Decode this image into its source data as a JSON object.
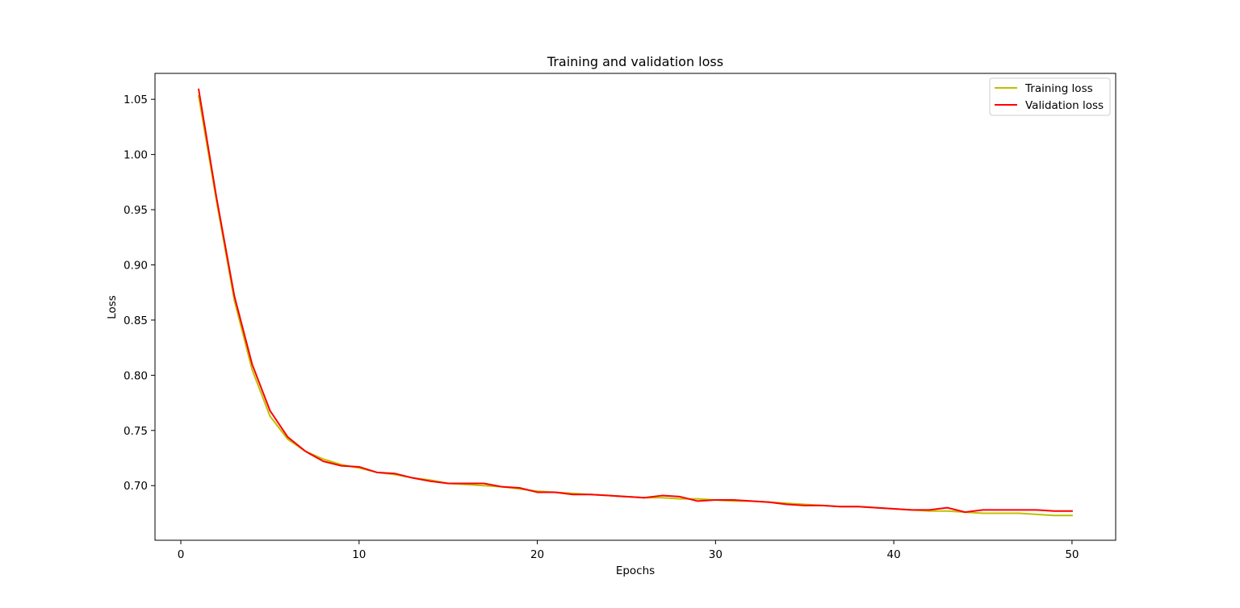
{
  "chart_data": {
    "type": "line",
    "title": "Training and validation loss",
    "xlabel": "Epochs",
    "ylabel": "Loss",
    "xlim": [
      -1.45,
      52.45
    ],
    "ylim": [
      0.6505,
      1.0735
    ],
    "xticks": [
      0,
      10,
      20,
      30,
      40,
      50
    ],
    "xtick_labels": [
      "0",
      "10",
      "20",
      "30",
      "40",
      "50"
    ],
    "yticks": [
      0.7,
      0.75,
      0.8,
      0.85,
      0.9,
      0.95,
      1.0,
      1.05
    ],
    "ytick_labels": [
      "0.70",
      "0.75",
      "0.80",
      "0.85",
      "0.90",
      "0.95",
      "1.00",
      "1.05"
    ],
    "grid": false,
    "legend_position": "upper right",
    "x": [
      1,
      2,
      3,
      4,
      5,
      6,
      7,
      8,
      9,
      10,
      11,
      12,
      13,
      14,
      15,
      16,
      17,
      18,
      19,
      20,
      21,
      22,
      23,
      24,
      25,
      26,
      27,
      28,
      29,
      30,
      31,
      32,
      33,
      34,
      35,
      36,
      37,
      38,
      39,
      40,
      41,
      42,
      43,
      44,
      45,
      46,
      47,
      48,
      49,
      50
    ],
    "series": [
      {
        "name": "Training loss",
        "color": "#bfbf00",
        "values": [
          1.053,
          0.958,
          0.868,
          0.805,
          0.763,
          0.742,
          0.731,
          0.724,
          0.719,
          0.716,
          0.712,
          0.71,
          0.707,
          0.705,
          0.702,
          0.701,
          0.7,
          0.699,
          0.697,
          0.695,
          0.694,
          0.693,
          0.692,
          0.691,
          0.69,
          0.689,
          0.689,
          0.688,
          0.688,
          0.687,
          0.686,
          0.686,
          0.685,
          0.684,
          0.683,
          0.682,
          0.681,
          0.681,
          0.68,
          0.679,
          0.678,
          0.677,
          0.677,
          0.676,
          0.675,
          0.675,
          0.675,
          0.674,
          0.673,
          0.673
        ]
      },
      {
        "name": "Validation loss",
        "color": "#ff0000",
        "values": [
          1.059,
          0.961,
          0.872,
          0.81,
          0.768,
          0.744,
          0.731,
          0.722,
          0.718,
          0.717,
          0.712,
          0.711,
          0.707,
          0.704,
          0.702,
          0.702,
          0.702,
          0.699,
          0.698,
          0.694,
          0.694,
          0.692,
          0.692,
          0.691,
          0.69,
          0.689,
          0.691,
          0.69,
          0.686,
          0.687,
          0.687,
          0.686,
          0.685,
          0.683,
          0.682,
          0.682,
          0.681,
          0.681,
          0.68,
          0.679,
          0.678,
          0.678,
          0.68,
          0.676,
          0.678,
          0.678,
          0.678,
          0.678,
          0.677,
          0.677
        ]
      }
    ]
  }
}
